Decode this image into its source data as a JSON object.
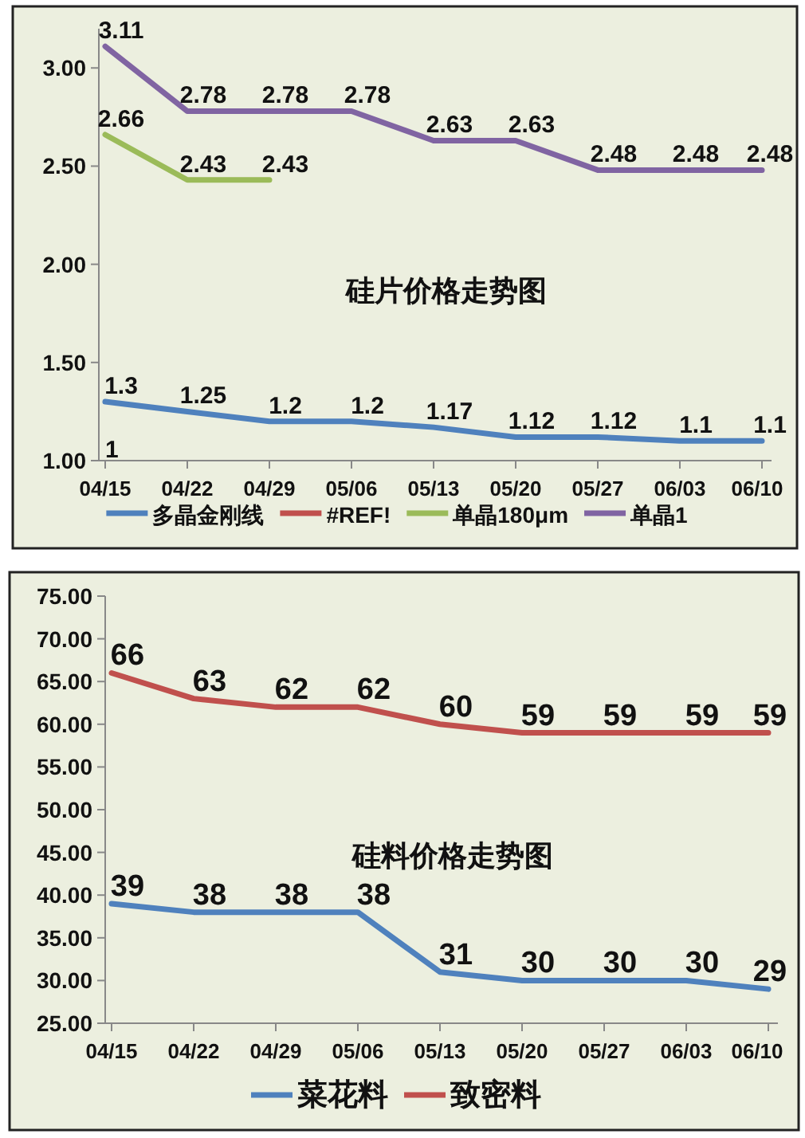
{
  "chart_data": [
    {
      "type": "line",
      "title": "硅片价格走势图",
      "categories": [
        "04/15",
        "04/22",
        "04/29",
        "05/06",
        "05/13",
        "05/20",
        "05/27",
        "06/03",
        "06/10"
      ],
      "series": [
        {
          "name": "多晶金刚线",
          "color": "#4f81bd",
          "values": [
            1.3,
            1.25,
            1.2,
            1.2,
            1.17,
            1.12,
            1.12,
            1.1,
            1.1
          ]
        },
        {
          "name": "#REF!",
          "color": "#c0504d",
          "values": [
            null,
            null,
            null,
            null,
            null,
            null,
            null,
            null,
            null
          ]
        },
        {
          "name": "单晶180μm",
          "color": "#9bbb59",
          "values": [
            2.66,
            2.43,
            2.43,
            null,
            null,
            null,
            null,
            null,
            null
          ]
        },
        {
          "name": "单晶1",
          "color": "#8064a2",
          "values": [
            3.11,
            2.78,
            2.78,
            2.78,
            2.63,
            2.63,
            2.48,
            2.48,
            2.48
          ]
        }
      ],
      "annotations": [
        "1"
      ],
      "ylim": [
        1,
        3.2
      ],
      "yticks": [
        {
          "value": 1,
          "label": "1.00"
        },
        {
          "value": 1.5,
          "label": "1.50"
        },
        {
          "value": 2,
          "label": "2.00"
        },
        {
          "value": 2.5,
          "label": "2.50"
        },
        {
          "value": 3,
          "label": "3.00"
        }
      ],
      "data_labels": true,
      "legend": "bottom",
      "grid": false,
      "marker": "none",
      "line_style": "solid"
    },
    {
      "type": "line",
      "title": "硅料价格走势图",
      "categories": [
        "04/15",
        "04/22",
        "04/29",
        "05/06",
        "05/13",
        "05/20",
        "05/27",
        "06/03",
        "06/10"
      ],
      "series": [
        {
          "name": "菜花料",
          "color": "#4f81bd",
          "values": [
            39,
            38,
            38,
            38,
            31,
            30,
            30,
            30,
            29
          ]
        },
        {
          "name": "致密料",
          "color": "#c0504d",
          "values": [
            66,
            63,
            62,
            62,
            60,
            59,
            59,
            59,
            59
          ]
        }
      ],
      "ylim": [
        25,
        75
      ],
      "yticks": [
        {
          "value": 25,
          "label": "25.00"
        },
        {
          "value": 30,
          "label": "30.00"
        },
        {
          "value": 35,
          "label": "35.00"
        },
        {
          "value": 40,
          "label": "40.00"
        },
        {
          "value": 45,
          "label": "45.00"
        },
        {
          "value": 50,
          "label": "50.00"
        },
        {
          "value": 55,
          "label": "55.00"
        },
        {
          "value": 60,
          "label": "60.00"
        },
        {
          "value": 65,
          "label": "65.00"
        },
        {
          "value": 70,
          "label": "70.00"
        },
        {
          "value": 75,
          "label": "75.00"
        }
      ],
      "data_labels": true,
      "legend": "bottom",
      "grid": false,
      "marker": "none",
      "line_style": "solid"
    }
  ]
}
